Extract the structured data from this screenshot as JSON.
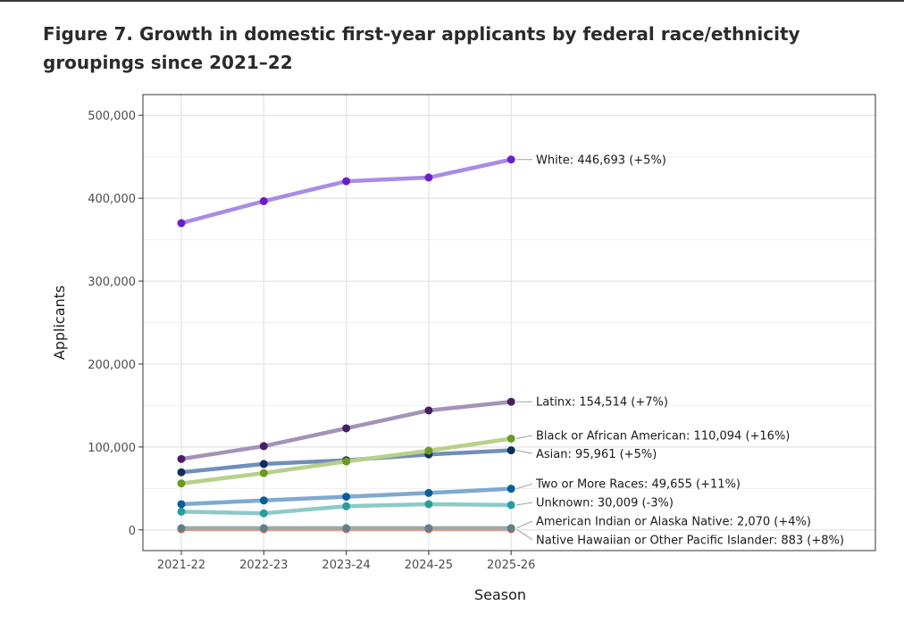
{
  "title": "Figure 7. Growth in domestic first-year applicants by federal race/ethnicity groupings since 2021–22",
  "chart_data": {
    "type": "line",
    "title": "Figure 7. Growth in domestic first-year applicants by federal race/ethnicity groupings since 2021–22",
    "xlabel": "Season",
    "ylabel": "Applicants",
    "categories": [
      "2021-22",
      "2022-23",
      "2023-24",
      "2024-25",
      "2025-26"
    ],
    "ylim": [
      -25000,
      525000
    ],
    "yticks": [
      0,
      100000,
      200000,
      300000,
      400000,
      500000
    ],
    "ytick_labels": [
      "0",
      "100,000",
      "200,000",
      "300,000",
      "400,000",
      "500,000"
    ],
    "grid": true,
    "series": [
      {
        "name": "White",
        "values": [
          370000,
          396500,
          420500,
          425000,
          446693
        ],
        "line_color": "#a98be6",
        "point_color": "#6a1fc9",
        "label": "White: 446,693 (+5%)",
        "label_value": 446693
      },
      {
        "name": "Latinx",
        "values": [
          85500,
          101000,
          122500,
          144000,
          154514
        ],
        "line_color": "#a393b8",
        "point_color": "#4a1e66",
        "label": "Latinx: 154,514 (+7%)",
        "label_value": 154514
      },
      {
        "name": "Black or African American",
        "values": [
          56000,
          68500,
          82500,
          95500,
          110094
        ],
        "line_color": "#b8d08a",
        "point_color": "#6a9a1f",
        "label": "Black or African American: 110,094 (+16%)",
        "label_value": 114000
      },
      {
        "name": "Asian",
        "values": [
          69500,
          79500,
          84000,
          91000,
          95961
        ],
        "line_color": "#6f8fb8",
        "point_color": "#0f2f5e",
        "label": "Asian: 95,961 (+5%)",
        "label_value": 92000
      },
      {
        "name": "Two or More Races",
        "values": [
          31000,
          35500,
          40000,
          44500,
          49655
        ],
        "line_color": "#7ea9d1",
        "point_color": "#0a5f99",
        "label": "Two or More Races: 49,655 (+11%)",
        "label_value": 55500
      },
      {
        "name": "Unknown",
        "values": [
          22000,
          20000,
          28500,
          31000,
          30009
        ],
        "line_color": "#8ccaca",
        "point_color": "#2a9c9c",
        "label": "Unknown: 30,009 (-3%)",
        "label_value": 33000
      },
      {
        "name": "American Indian or Alaska Native",
        "values": [
          1990,
          2000,
          2030,
          2050,
          2070
        ],
        "line_color": "#9aa8a8",
        "point_color": "#5f7f8a",
        "label": "American Indian or Alaska Native: 2,070 (+4%)",
        "label_value": 10500
      },
      {
        "name": "Native Hawaiian or Other Pacific Islander",
        "values": [
          818,
          830,
          850,
          870,
          883
        ],
        "line_color": "#e89a86",
        "point_color": "#f0603c",
        "label": "Native Hawaiian or Other Pacific Islander: 883 (+8%)",
        "label_value": -12000
      }
    ]
  }
}
